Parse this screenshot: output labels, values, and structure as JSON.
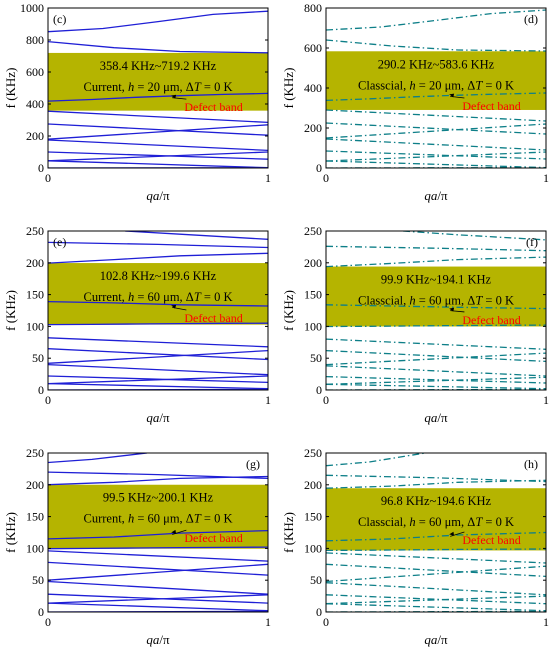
{
  "colors": {
    "band_fill": "#b5b400",
    "current_curve": "#1f1fd6",
    "classical_curve": "#0e7f88",
    "defect_label": "#ff0000"
  },
  "chart_data": [
    {
      "type": "line",
      "panel": "(c)",
      "model": "Current",
      "line_style": "solid",
      "xlabel_main": "qa",
      "xlabel_suffix": "/π",
      "ylabel": "f (KHz)",
      "ylim": [
        0,
        1000
      ],
      "yticks": [
        "0",
        "200",
        "400",
        "600",
        "800",
        "1000"
      ],
      "xlim": [
        0,
        1
      ],
      "xticks": [
        "0",
        "1"
      ],
      "grid": false,
      "band_gap": {
        "from": 358.4,
        "to": 719.2,
        "label": "358.4 KHz~719.2 KHz"
      },
      "condition": {
        "prefix": "Current, ",
        "var": "h",
        "mid": " = 20 μm, ",
        "delta": "Δ",
        "tvar": "T",
        "tail": " = 0 K"
      },
      "defect": {
        "label": "Defect band",
        "text_at": [
          0.62,
          368
        ],
        "arrow_to": [
          0.56,
          452
        ]
      },
      "series": [
        {
          "x": [
            0,
            1
          ],
          "y": [
            0,
            2
          ]
        },
        {
          "x": [
            0,
            1
          ],
          "y": [
            45,
            2
          ]
        },
        {
          "x": [
            0,
            1
          ],
          "y": [
            45,
            100
          ]
        },
        {
          "x": [
            0,
            1
          ],
          "y": [
            100,
            55
          ]
        },
        {
          "x": [
            0,
            1
          ],
          "y": [
            175,
            110
          ]
        },
        {
          "x": [
            0,
            1
          ],
          "y": [
            180,
            270
          ]
        },
        {
          "x": [
            0,
            1
          ],
          "y": [
            275,
            205
          ]
        },
        {
          "x": [
            0,
            1
          ],
          "y": [
            355,
            285
          ]
        },
        {
          "x": [
            0,
            0.2,
            0.4,
            0.6,
            0.8,
            1
          ],
          "y": [
            418,
            428,
            442,
            452,
            460,
            466
          ]
        },
        {
          "x": [
            0,
            0.3,
            0.6,
            1
          ],
          "y": [
            790,
            752,
            728,
            720
          ]
        },
        {
          "x": [
            0,
            0.25,
            0.5,
            0.75,
            1
          ],
          "y": [
            852,
            872,
            915,
            960,
            980
          ]
        }
      ]
    },
    {
      "type": "line",
      "panel": "(d)",
      "model": "Classical",
      "line_style": "dashdot",
      "xlabel_main": "qa",
      "xlabel_suffix": "/π",
      "ylabel": "f (KHz)",
      "ylim": [
        0,
        800
      ],
      "yticks": [
        "0",
        "200",
        "400",
        "600",
        "800"
      ],
      "xlim": [
        0,
        1
      ],
      "xticks": [
        "0",
        "1"
      ],
      "grid": false,
      "band_gap": {
        "from": 290.2,
        "to": 583.6,
        "label": "290.2 KHz~583.6 KHz"
      },
      "condition": {
        "prefix": "Classcial, ",
        "var": "h",
        "mid": " = 20 μm, ",
        "delta": "Δ",
        "tvar": "T",
        "tail": " = 0 K"
      },
      "defect": {
        "label": "Defect band",
        "text_at": [
          0.62,
          300
        ],
        "arrow_to": [
          0.56,
          368
        ]
      },
      "series": [
        {
          "x": [
            0,
            1
          ],
          "y": [
            0,
            2
          ]
        },
        {
          "x": [
            0,
            1
          ],
          "y": [
            35,
            2
          ]
        },
        {
          "x": [
            0,
            1
          ],
          "y": [
            35,
            80
          ]
        },
        {
          "x": [
            0,
            1
          ],
          "y": [
            85,
            45
          ]
        },
        {
          "x": [
            0,
            1
          ],
          "y": [
            145,
            90
          ]
        },
        {
          "x": [
            0,
            1
          ],
          "y": [
            150,
            220
          ]
        },
        {
          "x": [
            0,
            1
          ],
          "y": [
            225,
            170
          ]
        },
        {
          "x": [
            0,
            1
          ],
          "y": [
            290,
            235
          ]
        },
        {
          "x": [
            0,
            0.2,
            0.4,
            0.6,
            0.8,
            1
          ],
          "y": [
            338,
            346,
            356,
            364,
            370,
            375
          ]
        },
        {
          "x": [
            0,
            0.3,
            0.6,
            1
          ],
          "y": [
            640,
            610,
            590,
            585
          ]
        },
        {
          "x": [
            0,
            0.25,
            0.5,
            0.75,
            1
          ],
          "y": [
            690,
            705,
            738,
            772,
            790
          ]
        }
      ]
    },
    {
      "type": "line",
      "panel": "(e)",
      "model": "Current",
      "line_style": "solid",
      "xlabel_main": "qa",
      "xlabel_suffix": "/π",
      "ylabel": "f (KHz)",
      "ylim": [
        0,
        250
      ],
      "yticks": [
        "0",
        "50",
        "100",
        "150",
        "200",
        "250"
      ],
      "xlim": [
        0,
        1
      ],
      "xticks": [
        "0",
        "1"
      ],
      "grid": false,
      "band_gap": {
        "from": 102.8,
        "to": 199.6,
        "label": "102.8 KHz~199.6 KHz"
      },
      "condition": {
        "prefix": "Current, ",
        "var": "h",
        "mid": " = 60 μm, ",
        "delta": "Δ",
        "tvar": "T",
        "tail": " = 0 K"
      },
      "defect": {
        "label": "Defect band",
        "text_at": [
          0.62,
          110
        ],
        "arrow_to": [
          0.56,
          133
        ]
      },
      "series": [
        {
          "x": [
            0,
            1
          ],
          "y": [
            0,
            1
          ]
        },
        {
          "x": [
            0,
            1
          ],
          "y": [
            10,
            2
          ]
        },
        {
          "x": [
            0,
            1
          ],
          "y": [
            10,
            22
          ]
        },
        {
          "x": [
            0,
            1
          ],
          "y": [
            22,
            12
          ]
        },
        {
          "x": [
            0,
            1
          ],
          "y": [
            40,
            24
          ]
        },
        {
          "x": [
            0,
            1
          ],
          "y": [
            42,
            62
          ]
        },
        {
          "x": [
            0,
            1
          ],
          "y": [
            65,
            48
          ]
        },
        {
          "x": [
            0,
            1
          ],
          "y": [
            82,
            68
          ]
        },
        {
          "x": [
            0,
            0.2,
            0.4,
            0.6,
            0.8,
            1
          ],
          "y": [
            102.8,
            103.2,
            103.8,
            104.4,
            104.8,
            105
          ]
        },
        {
          "x": [
            0,
            0.3,
            0.6,
            1
          ],
          "y": [
            139,
            137,
            134,
            132
          ]
        },
        {
          "x": [
            0,
            0.3,
            0.6,
            1
          ],
          "y": [
            199.6,
            205,
            211,
            215
          ]
        },
        {
          "x": [
            0,
            0.5,
            1
          ],
          "y": [
            232,
            229,
            224
          ]
        },
        {
          "x": [
            0.35,
            0.6,
            1
          ],
          "y": [
            250,
            245,
            237
          ]
        }
      ]
    },
    {
      "type": "line",
      "panel": "(f)",
      "model": "Classical",
      "line_style": "dashdot",
      "xlabel_main": "qa",
      "xlabel_suffix": "/π",
      "ylabel": "f (KHz)",
      "ylim": [
        0,
        250
      ],
      "yticks": [
        "0",
        "50",
        "100",
        "150",
        "200",
        "250"
      ],
      "xlim": [
        0,
        1
      ],
      "xticks": [
        "0",
        "1"
      ],
      "grid": false,
      "band_gap": {
        "from": 99.9,
        "to": 194.1,
        "label": "99.9 KHz~194.1 KHz"
      },
      "condition": {
        "prefix": "Classcial, ",
        "var": "h",
        "mid": " = 60 μm, ",
        "delta": "Δ",
        "tvar": "T",
        "tail": " = 0 K"
      },
      "defect": {
        "label": "Defect band",
        "text_at": [
          0.62,
          107
        ],
        "arrow_to": [
          0.56,
          128
        ]
      },
      "series": [
        {
          "x": [
            0,
            1
          ],
          "y": [
            0,
            1
          ]
        },
        {
          "x": [
            0,
            1
          ],
          "y": [
            9,
            2
          ]
        },
        {
          "x": [
            0,
            1
          ],
          "y": [
            9,
            20
          ]
        },
        {
          "x": [
            0,
            1
          ],
          "y": [
            21,
            11
          ]
        },
        {
          "x": [
            0,
            1
          ],
          "y": [
            38,
            22
          ]
        },
        {
          "x": [
            0,
            1
          ],
          "y": [
            40,
            58
          ]
        },
        {
          "x": [
            0,
            1
          ],
          "y": [
            62,
            45
          ]
        },
        {
          "x": [
            0,
            1
          ],
          "y": [
            80,
            64
          ]
        },
        {
          "x": [
            0,
            0.2,
            0.4,
            0.6,
            0.8,
            1
          ],
          "y": [
            99.9,
            100.2,
            100.8,
            101.3,
            101.7,
            102
          ]
        },
        {
          "x": [
            0,
            0.3,
            0.6,
            1
          ],
          "y": [
            134,
            132,
            130,
            128
          ]
        },
        {
          "x": [
            0,
            0.3,
            0.6,
            1
          ],
          "y": [
            194.1,
            199,
            205,
            209
          ]
        },
        {
          "x": [
            0,
            0.5,
            1
          ],
          "y": [
            226,
            223,
            219
          ]
        },
        {
          "x": [
            0.35,
            0.6,
            1
          ],
          "y": [
            250,
            244,
            236
          ]
        }
      ]
    },
    {
      "type": "line",
      "panel": "(g)",
      "model": "Current",
      "line_style": "solid",
      "xlabel_main": "qa",
      "xlabel_suffix": "/π",
      "ylabel": "f (KHz)",
      "ylim": [
        0,
        250
      ],
      "yticks": [
        "0",
        "50",
        "100",
        "150",
        "200",
        "250"
      ],
      "xlim": [
        0,
        1
      ],
      "xticks": [
        "0",
        "1"
      ],
      "grid": false,
      "band_gap": {
        "from": 99.5,
        "to": 200.1,
        "label": "99.5 KHz~200.1 KHz"
      },
      "condition": {
        "prefix": "Current, ",
        "var": "h",
        "mid": " = 60 μm, ",
        "delta": "Δ",
        "tvar": "T",
        "tail": " = 0 K"
      },
      "defect": {
        "label": "Defect band",
        "text_at": [
          0.62,
          113
        ],
        "arrow_to": [
          0.56,
          125
        ]
      },
      "series": [
        {
          "x": [
            0,
            1
          ],
          "y": [
            0,
            1
          ]
        },
        {
          "x": [
            0,
            1
          ],
          "y": [
            14,
            2
          ]
        },
        {
          "x": [
            0,
            1
          ],
          "y": [
            14,
            27
          ]
        },
        {
          "x": [
            0,
            1
          ],
          "y": [
            28,
            14
          ]
        },
        {
          "x": [
            0,
            1
          ],
          "y": [
            48,
            28
          ]
        },
        {
          "x": [
            0,
            1
          ],
          "y": [
            50,
            75
          ]
        },
        {
          "x": [
            0,
            1
          ],
          "y": [
            78,
            58
          ]
        },
        {
          "x": [
            0,
            1
          ],
          "y": [
            96,
            80
          ]
        },
        {
          "x": [
            0,
            0.2,
            0.4,
            0.6,
            0.8,
            1
          ],
          "y": [
            99.5,
            100,
            100.6,
            101.2,
            101.6,
            102
          ]
        },
        {
          "x": [
            0,
            0.3,
            0.6,
            1
          ],
          "y": [
            115,
            118,
            124,
            128
          ]
        },
        {
          "x": [
            0,
            0.3,
            0.6,
            1
          ],
          "y": [
            200.1,
            204,
            210,
            213
          ]
        },
        {
          "x": [
            0,
            0.5,
            1
          ],
          "y": [
            220,
            216,
            210
          ]
        },
        {
          "x": [
            0,
            0.2,
            0.45
          ],
          "y": [
            235,
            240,
            250
          ]
        }
      ]
    },
    {
      "type": "line",
      "panel": "(h)",
      "model": "Classical",
      "line_style": "dashdot",
      "xlabel_main": "qa",
      "xlabel_suffix": "/π",
      "ylabel": "f (KHz)",
      "ylim": [
        0,
        250
      ],
      "yticks": [
        "0",
        "50",
        "100",
        "150",
        "200",
        "250"
      ],
      "xlim": [
        0,
        1
      ],
      "xticks": [
        "0",
        "1"
      ],
      "grid": false,
      "band_gap": {
        "from": 96.8,
        "to": 194.6,
        "label": "96.8 KHz~194.6 KHz"
      },
      "condition": {
        "prefix": "Classcial, ",
        "var": "h",
        "mid": " = 60 μm, ",
        "delta": "Δ",
        "tvar": "T",
        "tail": " = 0 K"
      },
      "defect": {
        "label": "Defect band",
        "text_at": [
          0.62,
          110
        ],
        "arrow_to": [
          0.56,
          122
        ]
      },
      "series": [
        {
          "x": [
            0,
            1
          ],
          "y": [
            0,
            1
          ]
        },
        {
          "x": [
            0,
            1
          ],
          "y": [
            13,
            2
          ]
        },
        {
          "x": [
            0,
            1
          ],
          "y": [
            13,
            25
          ]
        },
        {
          "x": [
            0,
            1
          ],
          "y": [
            27,
            13
          ]
        },
        {
          "x": [
            0,
            1
          ],
          "y": [
            46,
            27
          ]
        },
        {
          "x": [
            0,
            1
          ],
          "y": [
            48,
            72
          ]
        },
        {
          "x": [
            0,
            1
          ],
          "y": [
            75,
            56
          ]
        },
        {
          "x": [
            0,
            1
          ],
          "y": [
            93,
            77
          ]
        },
        {
          "x": [
            0,
            0.2,
            0.4,
            0.6,
            0.8,
            1
          ],
          "y": [
            96.8,
            97.2,
            97.8,
            98.4,
            98.8,
            99
          ]
        },
        {
          "x": [
            0,
            0.3,
            0.6,
            1
          ],
          "y": [
            112,
            115,
            121,
            125
          ]
        },
        {
          "x": [
            0,
            0.3,
            0.6,
            1
          ],
          "y": [
            194.6,
            198,
            204,
            207
          ]
        },
        {
          "x": [
            0,
            0.5,
            1
          ],
          "y": [
            215,
            211,
            205
          ]
        },
        {
          "x": [
            0,
            0.2,
            0.45
          ],
          "y": [
            230,
            236,
            250
          ]
        }
      ]
    }
  ]
}
